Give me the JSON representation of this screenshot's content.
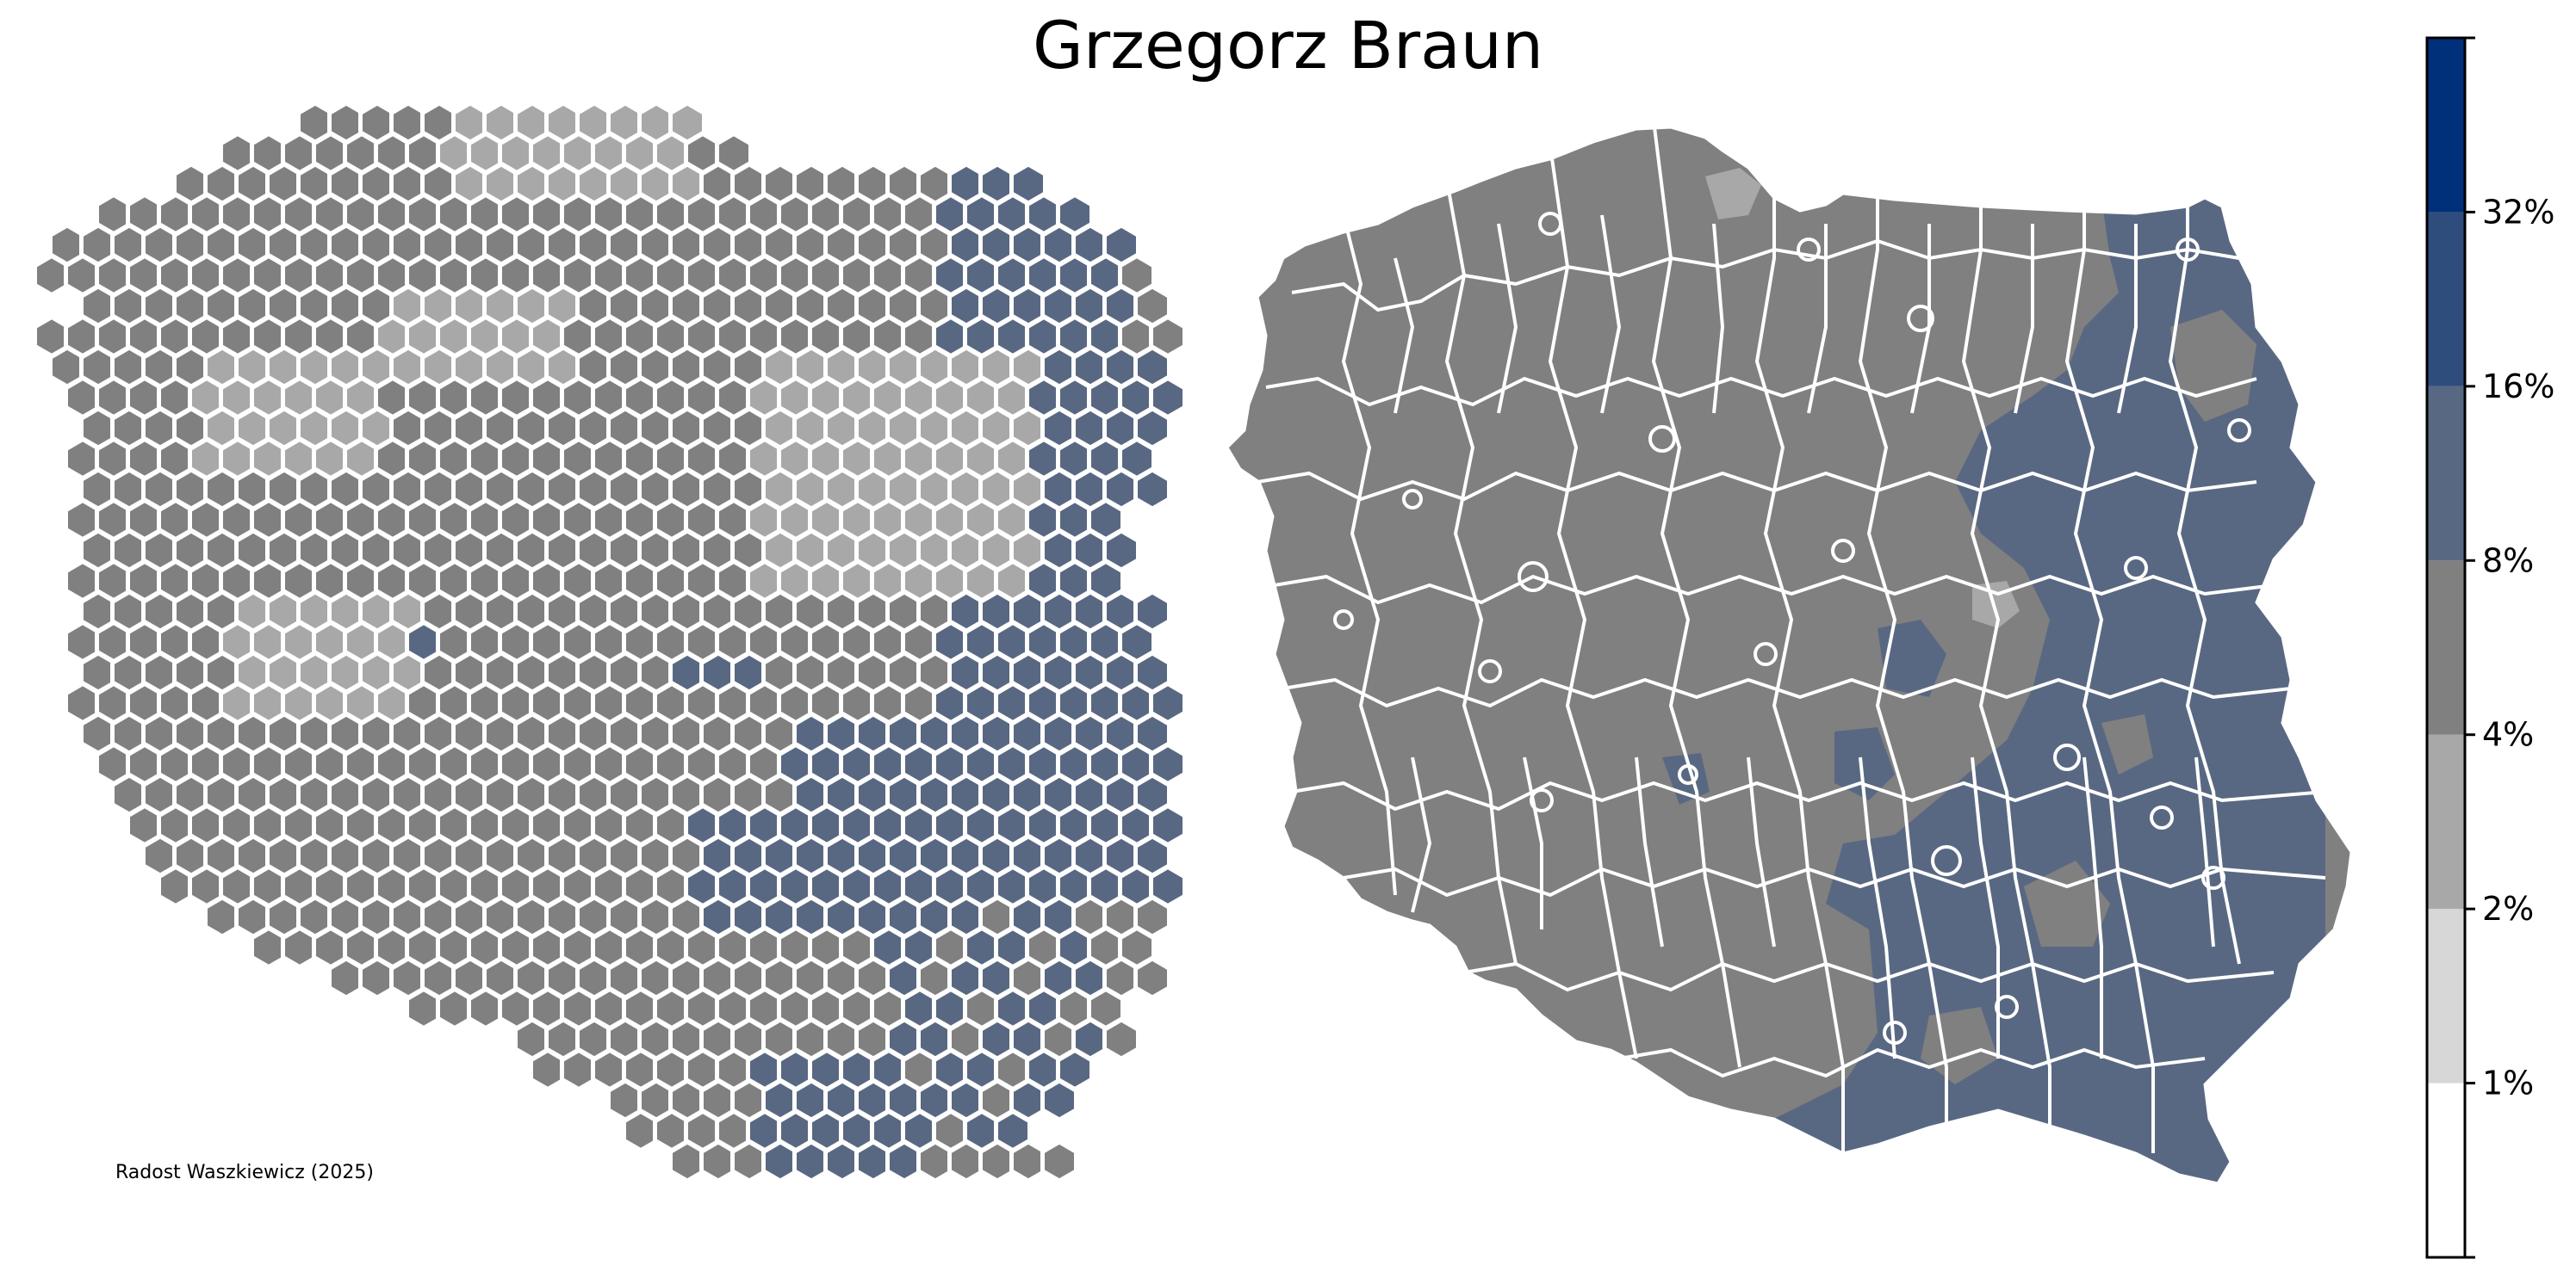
{
  "title": "Grzegorz Braun",
  "credit": "Radost Waszkiewicz (2025)",
  "legend": {
    "tick_labels": [
      "1%",
      "2%",
      "4%",
      "8%",
      "16%",
      "32%"
    ],
    "bins": [
      {
        "range": "<1%",
        "color": "#ffffff"
      },
      {
        "range": "1-2%",
        "color": "#d7d7d7"
      },
      {
        "range": "2-4%",
        "color": "#a8a8a8"
      },
      {
        "range": "4-8%",
        "color": "#808080"
      },
      {
        "range": "8-16%",
        "color": "#596882"
      },
      {
        "range": "16-32%",
        "color": "#2e4d7d"
      },
      {
        "range": ">32%",
        "color": "#00307a"
      }
    ]
  },
  "colors": {
    "gray_dark": "#808080",
    "gray_light": "#a8a8a8",
    "blue": "#596882",
    "border": "#ffffff"
  },
  "maps": [
    {
      "name": "hexagon-cartogram"
    },
    {
      "name": "choropleth-map"
    }
  ]
}
